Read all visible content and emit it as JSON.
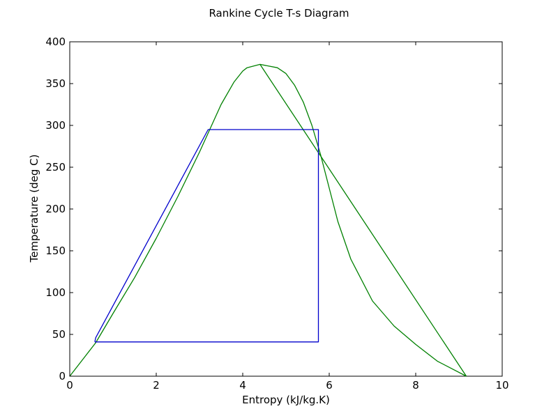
{
  "chart_data": {
    "type": "line",
    "title": "Rankine Cycle T-s Diagram",
    "xlabel": "Entropy (kJ/kg.K)",
    "ylabel": "Temperature (deg C)",
    "xlim": [
      0,
      10
    ],
    "ylim": [
      0,
      400
    ],
    "xticks": [
      0,
      2,
      4,
      6,
      8,
      10
    ],
    "yticks": [
      0,
      50,
      100,
      150,
      200,
      250,
      300,
      350,
      400
    ],
    "grid": false,
    "legend": "none",
    "series": [
      {
        "color": "#008000",
        "x": [
          0.0,
          0.3,
          0.6,
          1.0,
          1.5,
          2.0,
          2.5,
          3.0,
          3.5,
          3.8,
          4.0,
          4.1,
          4.4,
          4.8,
          5.0,
          5.2,
          5.4,
          5.6,
          5.8,
          6.0,
          6.2,
          6.5,
          7.0,
          7.5,
          8.0,
          8.5,
          9.17
        ],
        "y": [
          0,
          20,
          40,
          75,
          118,
          165,
          215,
          268,
          325,
          352,
          365,
          369,
          373,
          369,
          362,
          348,
          328,
          300,
          265,
          225,
          185,
          140,
          90,
          60,
          38,
          18,
          0
        ]
      },
      {
        "color": "#008000",
        "x": [
          4.4,
          9.17
        ],
        "y": [
          373,
          0
        ]
      },
      {
        "color": "#0000cc",
        "x": [
          0.58,
          0.6,
          3.2,
          5.75,
          5.75,
          0.58
        ],
        "y": [
          41,
          46,
          295,
          295,
          41,
          41
        ]
      }
    ]
  }
}
